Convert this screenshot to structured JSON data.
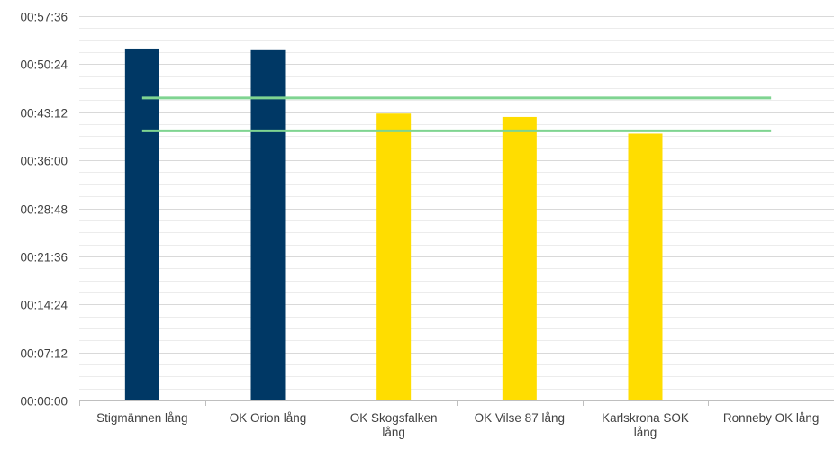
{
  "chart_data": {
    "type": "bar",
    "title": "",
    "xlabel": "",
    "ylabel": "",
    "categories": [
      "Stigmännen lång",
      "OK Orion lång",
      "OK Skogsfalken lång",
      "OK Vilse 87 lång",
      "Karlskrona SOK lång",
      "Ronneby OK lång"
    ],
    "category_lines": [
      [
        "Stigmännen lång"
      ],
      [
        "OK Orion lång"
      ],
      [
        "OK Skogsfalken",
        "lång"
      ],
      [
        "OK Vilse 87 lång"
      ],
      [
        "Karlskrona SOK",
        "lång"
      ],
      [
        "Ronneby OK lång"
      ]
    ],
    "values": [
      "00:52:45",
      "00:52:30",
      "00:43:00",
      "00:42:30",
      "00:40:00",
      null
    ],
    "bar_colors": [
      "#003865",
      "#003865",
      "#FFDD00",
      "#FFDD00",
      "#FFDD00",
      null
    ],
    "ylim": [
      "00:00:00",
      "00:57:36"
    ],
    "y_ticks": [
      "00:00:00",
      "00:07:12",
      "00:14:24",
      "00:21:36",
      "00:28:48",
      "00:36:00",
      "00:43:12",
      "00:50:24",
      "00:57:36"
    ],
    "reference_lines": [
      {
        "value": "00:45:20",
        "color": "#7FD491"
      },
      {
        "value": "00:40:25",
        "color": "#7FD491"
      }
    ],
    "grid": true,
    "legend": "none"
  }
}
